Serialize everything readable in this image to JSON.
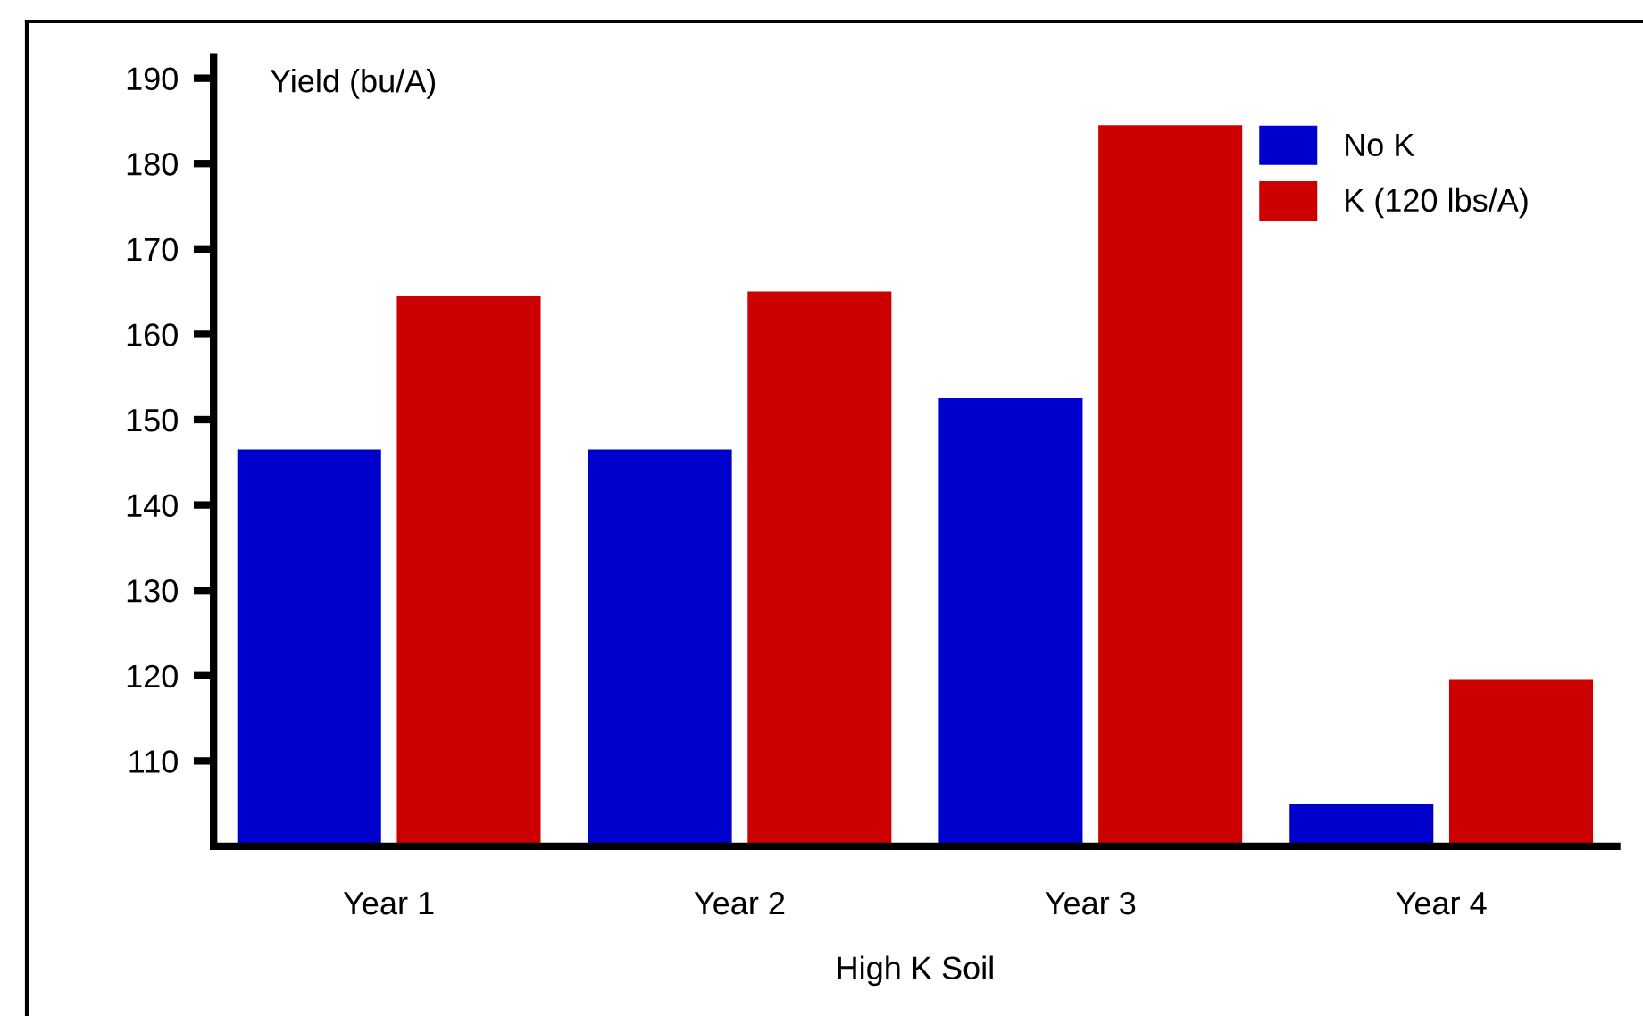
{
  "chart_data": {
    "type": "bar",
    "xlabel": "High K Soil",
    "ylabel": "Yield (bu/A)",
    "categories": [
      "Year 1",
      "Year 2",
      "Year 3",
      "Year 4"
    ],
    "series": [
      {
        "name": "No K",
        "color": "#0000cc",
        "values": [
          146.5,
          146.5,
          152.5,
          105
        ]
      },
      {
        "name": "K (120 lbs/A)",
        "color": "#cc0000",
        "values": [
          164.5,
          165,
          184.5,
          119.5
        ]
      }
    ],
    "ylim": [
      100,
      192.5
    ],
    "yticks": [
      110,
      120,
      130,
      140,
      150,
      160,
      170,
      180,
      190
    ],
    "grid": false,
    "legend": "top right"
  }
}
